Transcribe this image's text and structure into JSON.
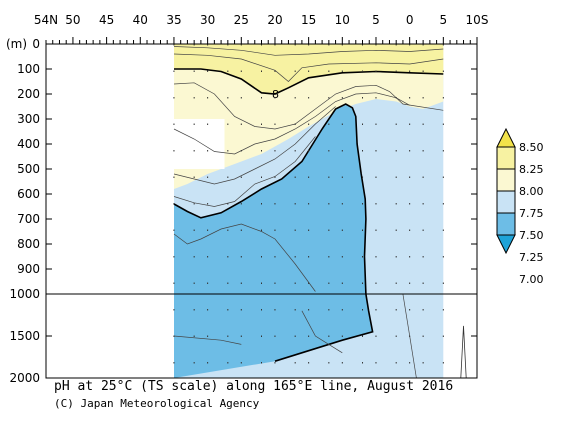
{
  "chart_data": {
    "type": "contour",
    "title": "pH at 25°C (TS scale) along 165°E line, August 2016",
    "credit": "(C) Japan Meteorological Agency",
    "x_axis": {
      "position": "top",
      "ticks": [
        "54N",
        "50",
        "45",
        "40",
        "35",
        "30",
        "25",
        "20",
        "15",
        "10",
        "5",
        "0",
        "5",
        "10S"
      ],
      "ticks_numeric": [
        54,
        50,
        45,
        40,
        35,
        30,
        25,
        20,
        15,
        10,
        5,
        0,
        -5,
        -10
      ],
      "range": [
        54,
        -10
      ]
    },
    "y_axis": {
      "unit_label": "(m)",
      "ticks": [
        "0",
        "100",
        "200",
        "300",
        "400",
        "500",
        "600",
        "700",
        "800",
        "900",
        "1000",
        "1500",
        "2000"
      ],
      "ticks_numeric": [
        0,
        100,
        200,
        300,
        400,
        500,
        600,
        700,
        800,
        900,
        1000,
        1500,
        2000
      ],
      "scale": "piecewise linear: 0-1000 m upper panel, 1000-2000 m compressed lower panel",
      "reversed": true
    },
    "data_extent_lat": [
      35,
      -5
    ],
    "colorbar": {
      "levels": [
        "8.50",
        "8.25",
        "8.00",
        "7.75",
        "7.50",
        "7.25",
        "7.00"
      ],
      "levels_numeric": [
        8.5,
        8.25,
        8.0,
        7.75,
        7.5,
        7.25,
        7.0
      ],
      "colors": [
        "#f2e24a",
        "#f7f2a2",
        "#fbf8d2",
        "#c9e3f5",
        "#6dbde6",
        "#1ea3d8"
      ],
      "extend": "both"
    },
    "bands": [
      {
        "range": ">8.0",
        "color": "#f7f2a2",
        "lat_extent": [
          35,
          -5
        ],
        "depth_range_m": [
          0,
          120
        ]
      },
      {
        "range": "7.75-8.0",
        "color": "#fbf8d2",
        "lat_extent": [
          35,
          -5
        ],
        "depth_range_m": [
          100,
          660
        ]
      },
      {
        "range": "7.5-7.75",
        "color": "#c9e3f5",
        "lat_extent": [
          35,
          -5
        ],
        "depth_range_m": [
          250,
          2000
        ]
      },
      {
        "range": "7.25-7.5",
        "color": "#6dbde6",
        "lat_extent": [
          35,
          7
        ],
        "depth_range_m": [
          240,
          2000
        ]
      }
    ],
    "labels": [
      {
        "text": "8",
        "lat": 20,
        "depth_m": 200
      }
    ],
    "masked_region": {
      "lat": [
        35,
        27
      ],
      "depth_m": [
        300,
        500
      ],
      "note": "no data"
    }
  }
}
